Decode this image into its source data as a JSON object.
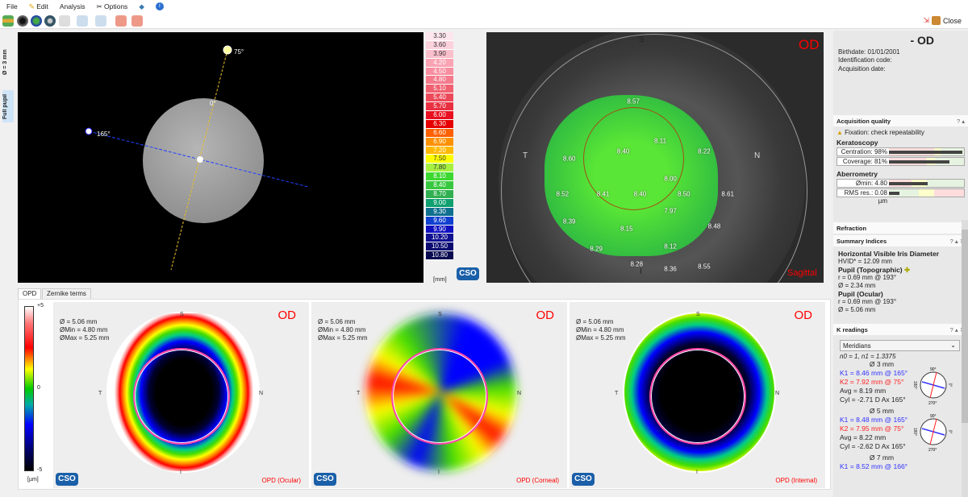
{
  "menu": [
    "File",
    "Edit",
    "Analysis",
    "Options"
  ],
  "toolbar": {
    "close_label": "Close"
  },
  "left_tabs": [
    "Ø = 3 mm",
    "Full pupil"
  ],
  "image": {
    "angle_top": "75°",
    "angle_left": "165°",
    "angle_center": "0°"
  },
  "color_scale": {
    "unit": "[mm]",
    "values": [
      "3.30",
      "3.60",
      "3.90",
      "4.20",
      "4.50",
      "4.80",
      "5.10",
      "5.40",
      "5.70",
      "6.00",
      "6.30",
      "6.60",
      "6.90",
      "7.20",
      "7.50",
      "7.80",
      "8.10",
      "8.40",
      "8.70",
      "9.00",
      "9.30",
      "9.60",
      "9.90",
      "10.20",
      "10.50",
      "10.80"
    ],
    "colors": [
      "#fde6ee",
      "#fcd3dd",
      "#fbbfcc",
      "#f9a3b3",
      "#f78e9f",
      "#f47a8c",
      "#f06070",
      "#ec4a5a",
      "#e83040",
      "#e81020",
      "#e60000",
      "#ff6000",
      "#ff9000",
      "#ffb800",
      "#ffff00",
      "#a6f040",
      "#3cd830",
      "#38c840",
      "#30b050",
      "#10a070",
      "#107090",
      "#1040d0",
      "#1010c0",
      "#101090",
      "#0a0a70",
      "#0a0a50"
    ]
  },
  "topography": {
    "eye": "OD",
    "map_type": "Sagittal",
    "directions": {
      "S": "S",
      "I": "I",
      "T": "T",
      "N": "N"
    },
    "values": [
      [
        "8.57",
        34,
        14
      ],
      [
        "8.11",
        42,
        30
      ],
      [
        "8.60",
        15,
        37
      ],
      [
        "8.40",
        31,
        34
      ],
      [
        "8.22",
        55,
        34
      ],
      [
        "8.00",
        45,
        45
      ],
      [
        "8.52",
        13,
        51
      ],
      [
        "8.41",
        25,
        51
      ],
      [
        "8.40",
        36,
        51
      ],
      [
        "8.50",
        49,
        51
      ],
      [
        "8.61",
        62,
        51
      ],
      [
        "7.97",
        45,
        58
      ],
      [
        "8.39",
        15,
        62
      ],
      [
        "8.15",
        32,
        65
      ],
      [
        "8.48",
        58,
        64
      ],
      [
        "8.12",
        45,
        72
      ],
      [
        "8.29",
        23,
        73
      ],
      [
        "8.28",
        35,
        79
      ],
      [
        "8.36",
        45,
        81
      ],
      [
        "8.55",
        55,
        80
      ]
    ]
  },
  "patient": {
    "title": "- OD",
    "birthdate": "Birthdate: 01/01/2001",
    "id_code": "Identification code:",
    "acq_date": "Acquisition date:"
  },
  "acq_quality": {
    "title": "Acquisition quality",
    "warning": "Fixation: check repeatability",
    "kerato": "Keratoscopy",
    "centration": "Centration: 98%",
    "centration_value": 98,
    "coverage": "Coverage: 81%",
    "coverage_value": 81,
    "aberro": "Aberrometry",
    "omin": "Ømin: 4.80",
    "rms": "RMS res.: 0.08 µm"
  },
  "refraction": {
    "title": "Refraction"
  },
  "summary": {
    "title": "Summary Indices",
    "hvid_title": "Horizontal Visible Iris Diameter",
    "hvid": "HVID* = 12.09 mm",
    "pupil_topo": "Pupil (Topographic)",
    "pt_r": "r = 0.69 mm @ 193°",
    "pt_d": "Ø = 2.34 mm",
    "pupil_ocular": "Pupil (Ocular)",
    "po_r": "r = 0.69 mm @ 193°",
    "po_d": "Ø = 5.06 mm"
  },
  "kreadings": {
    "title": "K readings",
    "select": "Meridians",
    "index": "n0 = 1, n1 = 1.3375",
    "zones": [
      {
        "d": "Ø 3 mm",
        "k1": "K1 = 8.46 mm  @ 165°",
        "k2": "K2 = 7.92 mm  @ 75°",
        "avg": "Avg = 8.19 mm",
        "cyl": "Cyl = -2.71 D Ax 165°"
      },
      {
        "d": "Ø 5 mm",
        "k1": "K1 = 8.48 mm  @ 165°",
        "k2": "K2 = 7.95 mm  @ 75°",
        "avg": "Avg = 8.22 mm",
        "cyl": "Cyl = -2.62 D Ax 165°"
      },
      {
        "d": "Ø 7 mm",
        "k1": "K1 = 8.52 mm  @ 166°"
      }
    ],
    "dial": {
      "top": "90°",
      "bottom": "270°",
      "left": "180°",
      "right": "0°"
    }
  },
  "bottom": {
    "tabs": [
      "OPD",
      "Zernike terms"
    ],
    "scale_max": "+5",
    "scale_zero": "0",
    "scale_min": "-5",
    "unit": "[µm]",
    "maps": [
      {
        "eye": "OD",
        "d": "Ø = 5.06 mm",
        "dmin": "ØMin = 4.80 mm",
        "dmax": "ØMax = 5.25 mm",
        "label": "OPD (Ocular)"
      },
      {
        "eye": "OD",
        "d": "Ø = 5.06 mm",
        "dmin": "ØMin = 4.80 mm",
        "dmax": "ØMax = 5.25 mm",
        "label": "OPD (Corneal)"
      },
      {
        "eye": "OD",
        "d": "Ø = 5.06 mm",
        "dmin": "ØMin = 4.80 mm",
        "dmax": "ØMax = 5.25 mm",
        "label": "OPD (Internal)"
      }
    ]
  },
  "logo": "CSO"
}
